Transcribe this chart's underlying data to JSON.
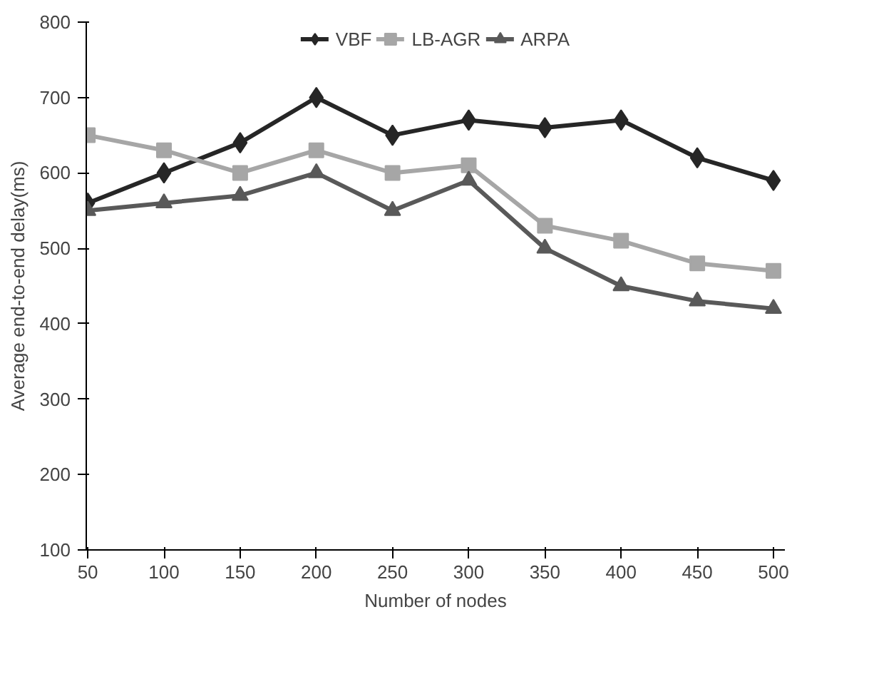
{
  "chart_data": {
    "type": "line",
    "xlabel": "Number of nodes",
    "ylabel": "Average end-to-end delay(ms)",
    "categories": [
      "50",
      "100",
      "150",
      "200",
      "250",
      "300",
      "350",
      "400",
      "450",
      "500"
    ],
    "ylim": [
      100,
      800
    ],
    "yticks": [
      100,
      200,
      300,
      400,
      500,
      600,
      700,
      800
    ],
    "grid": false,
    "legend": "top",
    "line_style": "solid",
    "series": [
      {
        "name": "VBF",
        "color": "#262626",
        "marker": "diamond",
        "values": [
          560,
          600,
          640,
          700,
          650,
          670,
          660,
          670,
          620,
          590
        ]
      },
      {
        "name": "LB-AGR",
        "color": "#a6a6a6",
        "marker": "square",
        "values": [
          650,
          630,
          600,
          630,
          600,
          610,
          530,
          510,
          480,
          470
        ]
      },
      {
        "name": "ARPA",
        "color": "#595959",
        "marker": "triangle",
        "values": [
          550,
          560,
          570,
          600,
          550,
          590,
          500,
          450,
          430,
          420
        ]
      }
    ]
  }
}
